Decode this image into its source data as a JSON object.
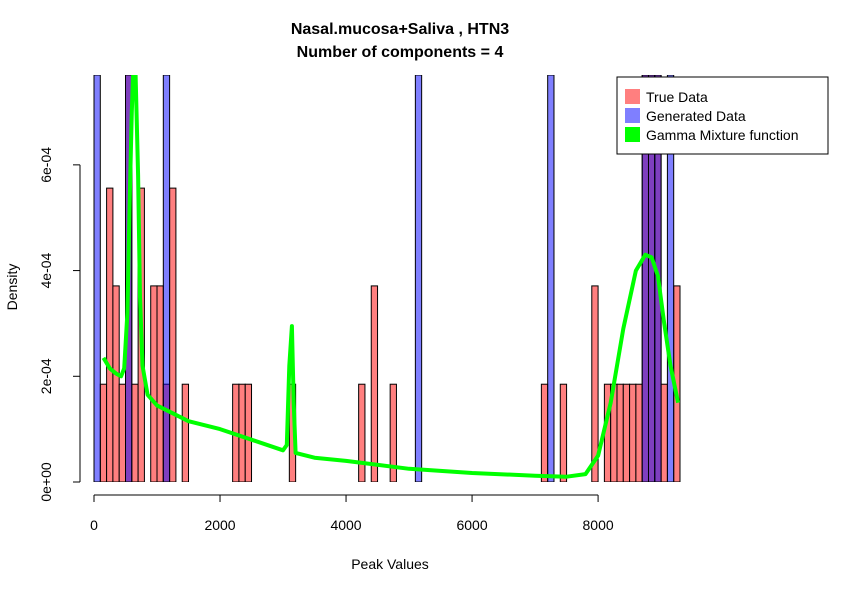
{
  "chart_data": {
    "type": "bar",
    "title": "Nasal.mucosa+Saliva , HTN3",
    "subtitle": "Number of components =  4",
    "xlabel": "Peak Values",
    "ylabel": "Density",
    "xlim": [
      0,
      9300
    ],
    "ylim": [
      0,
      0.00077
    ],
    "x_ticks": [
      0,
      2000,
      4000,
      6000,
      8000
    ],
    "x_tick_labels": [
      "0",
      "2000",
      "4000",
      "6000",
      "8000"
    ],
    "y_ticks": [
      0,
      0.0002,
      0.0004,
      0.0006
    ],
    "y_tick_labels": [
      "0e+00",
      "2e-04",
      "4e-04",
      "6e-04"
    ],
    "bin_width": 100,
    "legend": {
      "position": "top-right",
      "entries": [
        {
          "label": "True Data",
          "color": "#ff7f7f"
        },
        {
          "label": "Generated Data",
          "color": "#7f7fff"
        },
        {
          "label": "Gamma Mixture function",
          "color": "#00ff00"
        }
      ]
    },
    "series": [
      {
        "name": "True Data",
        "color": "#ff7f7f",
        "bins": [
          {
            "x0": 100,
            "value": 0.000185
          },
          {
            "x0": 200,
            "value": 0.000556
          },
          {
            "x0": 300,
            "value": 0.000371
          },
          {
            "x0": 400,
            "value": 0.000185
          },
          {
            "x0": 500,
            "value": 0.00077
          },
          {
            "x0": 600,
            "value": 0.000185
          },
          {
            "x0": 700,
            "value": 0.000556
          },
          {
            "x0": 900,
            "value": 0.000371
          },
          {
            "x0": 1000,
            "value": 0.000371
          },
          {
            "x0": 1100,
            "value": 0.000185
          },
          {
            "x0": 1200,
            "value": 0.000556
          },
          {
            "x0": 1400,
            "value": 0.000185
          },
          {
            "x0": 2200,
            "value": 0.000185
          },
          {
            "x0": 2300,
            "value": 0.000185
          },
          {
            "x0": 2400,
            "value": 0.000185
          },
          {
            "x0": 3100,
            "value": 0.000185
          },
          {
            "x0": 4200,
            "value": 0.000185
          },
          {
            "x0": 4400,
            "value": 0.000371
          },
          {
            "x0": 4700,
            "value": 0.000185
          },
          {
            "x0": 7100,
            "value": 0.000185
          },
          {
            "x0": 7400,
            "value": 0.000185
          },
          {
            "x0": 7900,
            "value": 0.000371
          },
          {
            "x0": 8100,
            "value": 0.000185
          },
          {
            "x0": 8200,
            "value": 0.000185
          },
          {
            "x0": 8300,
            "value": 0.000185
          },
          {
            "x0": 8400,
            "value": 0.000185
          },
          {
            "x0": 8500,
            "value": 0.000185
          },
          {
            "x0": 8600,
            "value": 0.000185
          },
          {
            "x0": 8700,
            "value": 0.00077
          },
          {
            "x0": 8800,
            "value": 0.00077
          },
          {
            "x0": 8900,
            "value": 0.00077
          },
          {
            "x0": 9000,
            "value": 0.000185
          },
          {
            "x0": 9200,
            "value": 0.000371
          }
        ]
      },
      {
        "name": "Generated Data",
        "color": "#7f7fff",
        "bins": [
          {
            "x0": 0,
            "value": 0.00077
          },
          {
            "x0": 500,
            "value": 0.00077
          },
          {
            "x0": 1100,
            "value": 0.00077
          },
          {
            "x0": 5100,
            "value": 0.00077
          },
          {
            "x0": 7200,
            "value": 0.00077
          },
          {
            "x0": 8700,
            "value": 0.00077
          },
          {
            "x0": 8800,
            "value": 0.00077
          },
          {
            "x0": 8900,
            "value": 0.00077
          },
          {
            "x0": 9100,
            "value": 0.00077
          }
        ]
      },
      {
        "name": "Gamma Mixture function",
        "color": "#00ff00",
        "type": "line",
        "points": [
          [
            150,
            0.000235
          ],
          [
            250,
            0.000215
          ],
          [
            350,
            0.000205
          ],
          [
            430,
            0.0002
          ],
          [
            480,
            0.000215
          ],
          [
            530,
            0.00032
          ],
          [
            570,
            0.00055
          ],
          [
            600,
            0.0007
          ],
          [
            620,
            0.00077
          ],
          [
            660,
            0.00077
          ],
          [
            700,
            0.00058
          ],
          [
            730,
            0.00035
          ],
          [
            770,
            0.00022
          ],
          [
            850,
            0.000165
          ],
          [
            1000,
            0.000145
          ],
          [
            1500,
            0.000115
          ],
          [
            2000,
            0.0001
          ],
          [
            2500,
            8e-05
          ],
          [
            3000,
            6e-05
          ],
          [
            3060,
            7e-05
          ],
          [
            3100,
            0.00022
          ],
          [
            3140,
            0.000295
          ],
          [
            3170,
            0.00015
          ],
          [
            3200,
            5.5e-05
          ],
          [
            3500,
            4.6e-05
          ],
          [
            4000,
            4e-05
          ],
          [
            5000,
            2.5e-05
          ],
          [
            6000,
            1.7e-05
          ],
          [
            7000,
            1.2e-05
          ],
          [
            7500,
            1e-05
          ],
          [
            7800,
            1.5e-05
          ],
          [
            8000,
            5e-05
          ],
          [
            8200,
            0.00015
          ],
          [
            8400,
            0.00029
          ],
          [
            8600,
            0.0004
          ],
          [
            8750,
            0.00043
          ],
          [
            8850,
            0.000425
          ],
          [
            8950,
            0.00039
          ],
          [
            9050,
            0.0003
          ],
          [
            9150,
            0.00022
          ],
          [
            9270,
            0.00015
          ]
        ]
      }
    ]
  }
}
